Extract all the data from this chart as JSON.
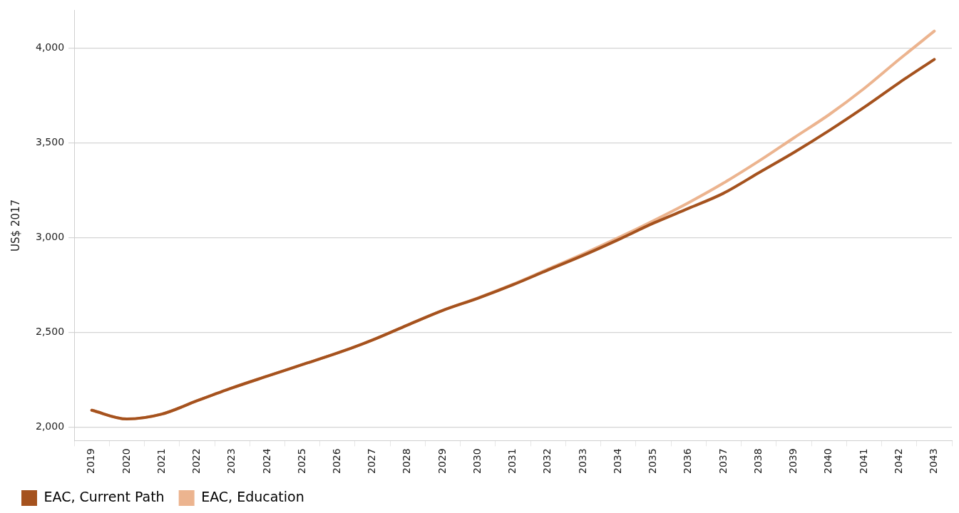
{
  "chart_data": {
    "type": "line",
    "ylabel": "US$ 2017",
    "categories": [
      "2019",
      "2020",
      "2021",
      "2022",
      "2023",
      "2024",
      "2025",
      "2026",
      "2027",
      "2028",
      "2029",
      "2030",
      "2031",
      "2032",
      "2033",
      "2034",
      "2035",
      "2036",
      "2037",
      "2038",
      "2039",
      "2040",
      "2041",
      "2042",
      "2043"
    ],
    "series": [
      {
        "name": "EAC, Current Path",
        "color": "#a5521e",
        "values": [
          2090,
          2044,
          2070,
          2140,
          2208,
          2270,
          2331,
          2392,
          2461,
          2540,
          2617,
          2681,
          2752,
          2830,
          2907,
          2990,
          3077,
          3155,
          3235,
          3343,
          3450,
          3565,
          3688,
          3818,
          3941
        ]
      },
      {
        "name": "EAC, Education",
        "color": "#ecb48f",
        "values": [
          2090,
          2044,
          2070,
          2140,
          2208,
          2270,
          2331,
          2392,
          2461,
          2540,
          2617,
          2683,
          2755,
          2835,
          2915,
          3000,
          3090,
          3185,
          3289,
          3404,
          3527,
          3649,
          3787,
          3941,
          4090
        ]
      }
    ],
    "ylim": [
      1930,
      4200
    ],
    "yticks": [
      {
        "value": 2000,
        "label": "2,000"
      },
      {
        "value": 2500,
        "label": "2,500"
      },
      {
        "value": 3000,
        "label": "3,000"
      },
      {
        "value": 3500,
        "label": "3,500"
      },
      {
        "value": 4000,
        "label": "4,000"
      }
    ],
    "grid": "y",
    "legend": "bottom left",
    "marker": "none",
    "line_style": "solid"
  }
}
